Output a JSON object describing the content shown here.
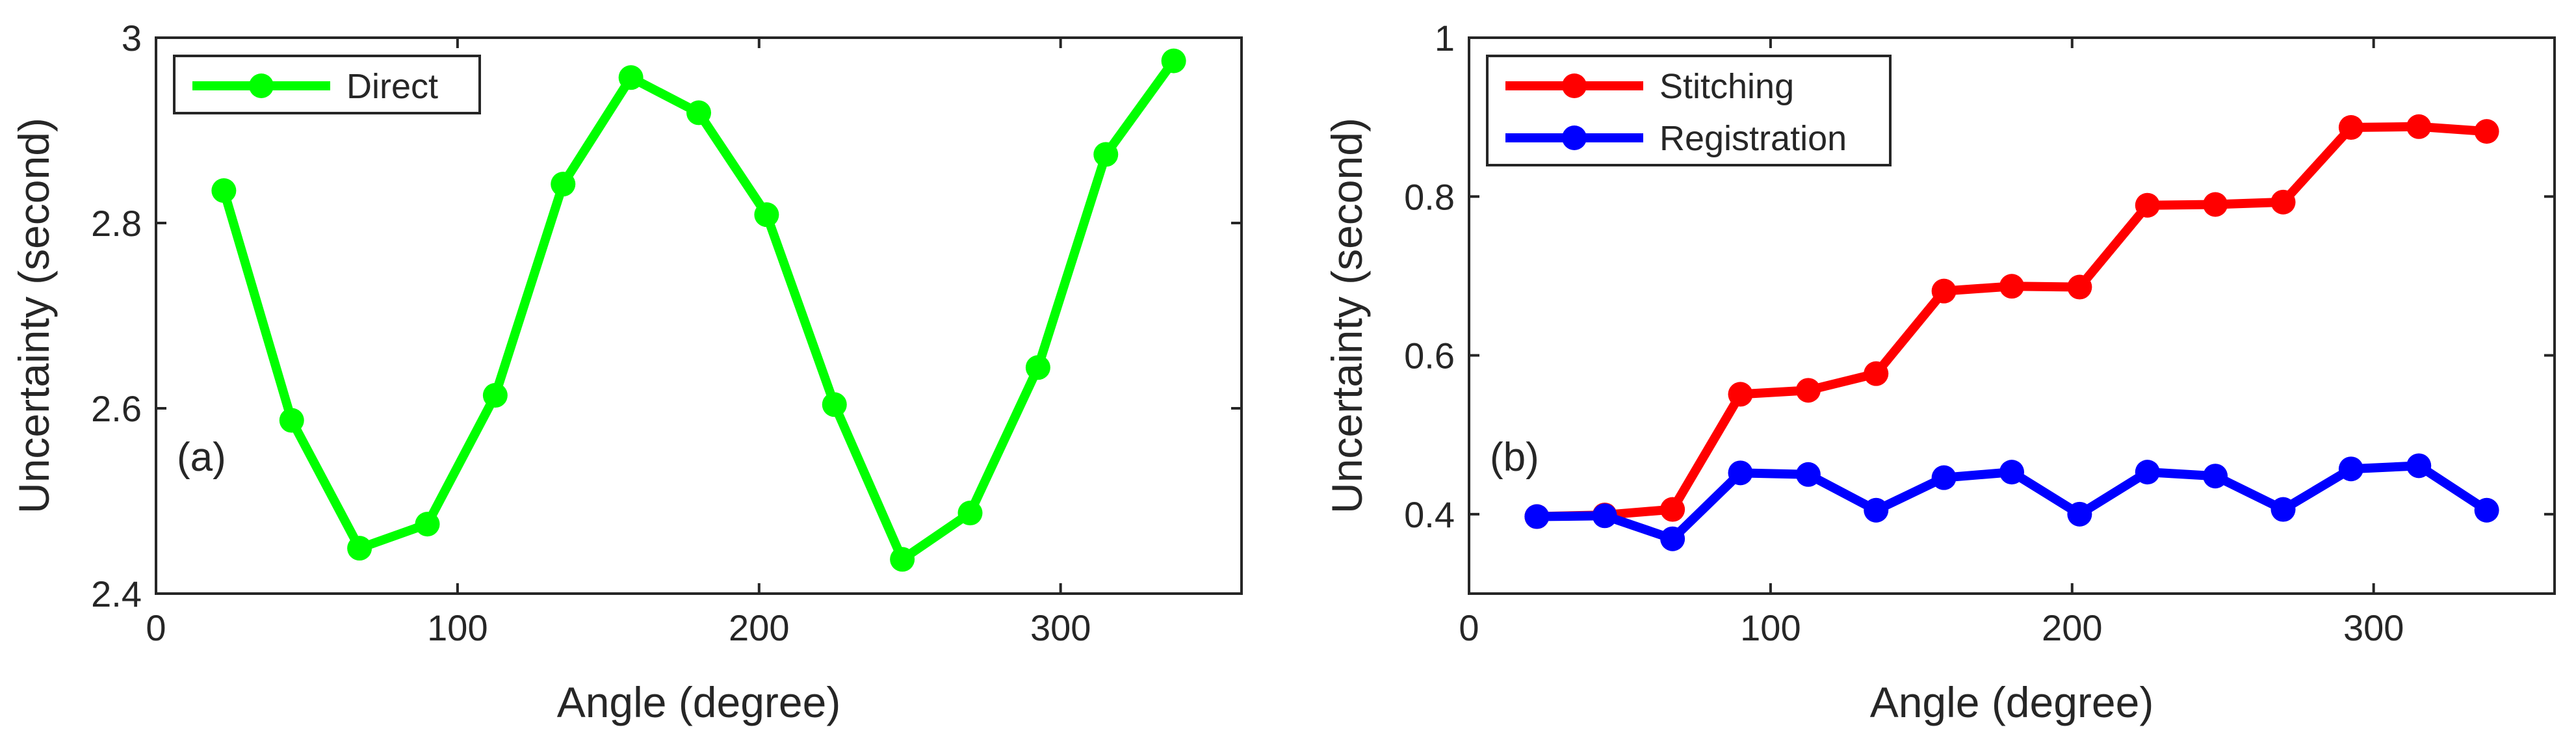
{
  "chart_data": [
    {
      "type": "line",
      "panel_label": "(a)",
      "xlabel": "Angle (degree)",
      "ylabel": "Uncertainty (second)",
      "xlim": [
        0,
        360
      ],
      "ylim": [
        2.4,
        3.0
      ],
      "xticks": [
        0,
        100,
        200,
        300
      ],
      "xtick_labels": [
        "0",
        "100",
        "200",
        "300"
      ],
      "yticks": [
        2.4,
        2.6,
        2.8,
        3.0
      ],
      "ytick_labels": [
        "2.4",
        "2.6",
        "2.8",
        "3"
      ],
      "grid": false,
      "legend_position": "top-left",
      "series": [
        {
          "name": "Direct",
          "color": "#00ff00",
          "x": [
            22.5,
            45,
            67.5,
            90,
            112.5,
            135,
            157.5,
            180,
            202.5,
            225,
            247.5,
            270,
            292.5,
            315,
            337.5
          ],
          "values": [
            2.835,
            2.587,
            2.449,
            2.475,
            2.614,
            2.842,
            2.957,
            2.919,
            2.809,
            2.604,
            2.437,
            2.487,
            2.644,
            2.874,
            2.975
          ]
        }
      ]
    },
    {
      "type": "line",
      "panel_label": "(b)",
      "xlabel": "Angle (degree)",
      "ylabel": "Uncertainty (second)",
      "xlim": [
        0,
        360
      ],
      "ylim": [
        0.3,
        1.0
      ],
      "xticks": [
        0,
        100,
        200,
        300
      ],
      "xtick_labels": [
        "0",
        "100",
        "200",
        "300"
      ],
      "yticks": [
        0.4,
        0.6,
        0.8,
        1.0
      ],
      "ytick_labels": [
        "0.4",
        "0.6",
        "0.8",
        "1"
      ],
      "grid": false,
      "legend_position": "top-left",
      "series": [
        {
          "name": "Stitching",
          "color": "#ff0000",
          "x": [
            22.5,
            45,
            67.5,
            90,
            112.5,
            135,
            157.5,
            180,
            202.5,
            225,
            247.5,
            270,
            292.5,
            315,
            337.5
          ],
          "values": [
            0.397,
            0.399,
            0.406,
            0.551,
            0.556,
            0.577,
            0.681,
            0.687,
            0.686,
            0.789,
            0.79,
            0.793,
            0.887,
            0.888,
            0.882
          ]
        },
        {
          "name": "Registration",
          "color": "#0000ff",
          "x": [
            22.5,
            45,
            67.5,
            90,
            112.5,
            135,
            157.5,
            180,
            202.5,
            225,
            247.5,
            270,
            292.5,
            315,
            337.5
          ],
          "values": [
            0.397,
            0.398,
            0.369,
            0.452,
            0.45,
            0.405,
            0.446,
            0.453,
            0.4,
            0.453,
            0.448,
            0.406,
            0.457,
            0.461,
            0.405
          ]
        }
      ]
    }
  ]
}
